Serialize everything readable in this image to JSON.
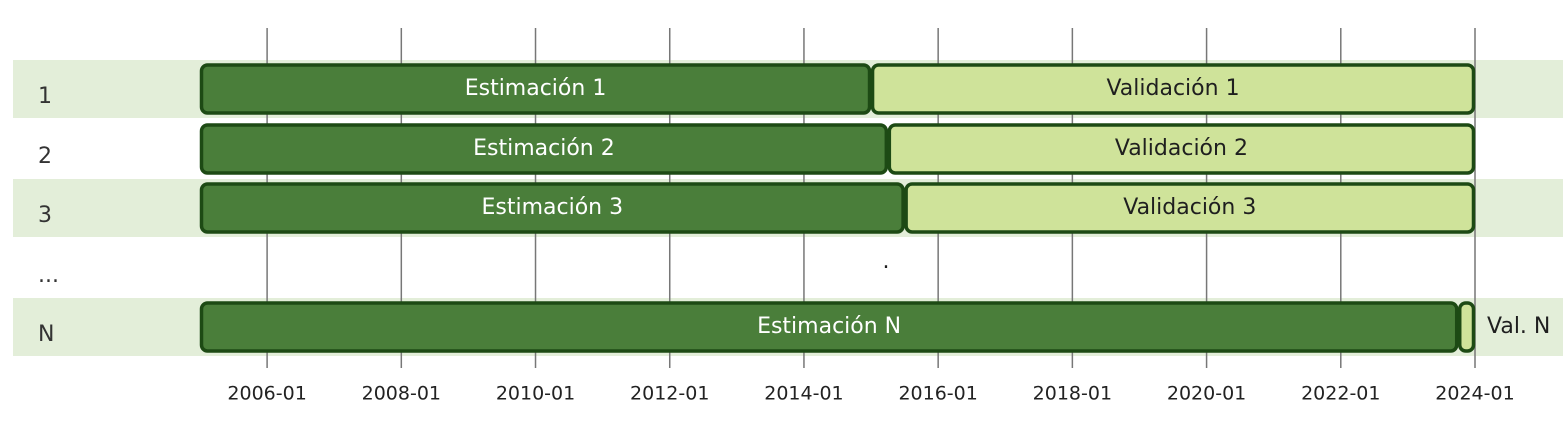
{
  "colors": {
    "estimation": "#4a7e3a",
    "validation": "#cfe39a",
    "border": "#1d4a14",
    "band": "#e3eed9",
    "gridline": "#777777"
  },
  "chart_data": {
    "type": "bar",
    "orientation": "horizontal",
    "stacked": true,
    "x_axis": {
      "type": "date",
      "range": [
        "2005-01",
        "2024-01"
      ],
      "ticks": [
        "2006-01",
        "2008-01",
        "2010-01",
        "2012-01",
        "2014-01",
        "2016-01",
        "2018-01",
        "2020-01",
        "2022-01",
        "2024-01"
      ]
    },
    "grid": true,
    "rows": [
      {
        "label": "1",
        "shaded": true,
        "segments": [
          {
            "kind": "estimation",
            "label": "Estimación 1",
            "start": "2005-01",
            "end": "2015-01"
          },
          {
            "kind": "validation",
            "label": "Validación 1",
            "start": "2015-01",
            "end": "2024-01"
          }
        ]
      },
      {
        "label": "2",
        "shaded": false,
        "segments": [
          {
            "kind": "estimation",
            "label": "Estimación 2",
            "start": "2005-01",
            "end": "2015-04"
          },
          {
            "kind": "validation",
            "label": "Validación 2",
            "start": "2015-04",
            "end": "2024-01"
          }
        ]
      },
      {
        "label": "3",
        "shaded": true,
        "segments": [
          {
            "kind": "estimation",
            "label": "Estimación 3",
            "start": "2005-01",
            "end": "2015-07"
          },
          {
            "kind": "validation",
            "label": "Validación 3",
            "start": "2015-07",
            "end": "2024-01"
          }
        ]
      },
      {
        "label": "...",
        "shaded": false,
        "segments": [],
        "marker": "."
      },
      {
        "label": "N",
        "shaded": true,
        "segments": [
          {
            "kind": "estimation",
            "label": "Estimación N",
            "start": "2005-01",
            "end": "2023-10"
          },
          {
            "kind": "validation",
            "label": "Val. N",
            "start": "2023-10",
            "end": "2024-01",
            "label_outside": true
          }
        ]
      }
    ]
  }
}
